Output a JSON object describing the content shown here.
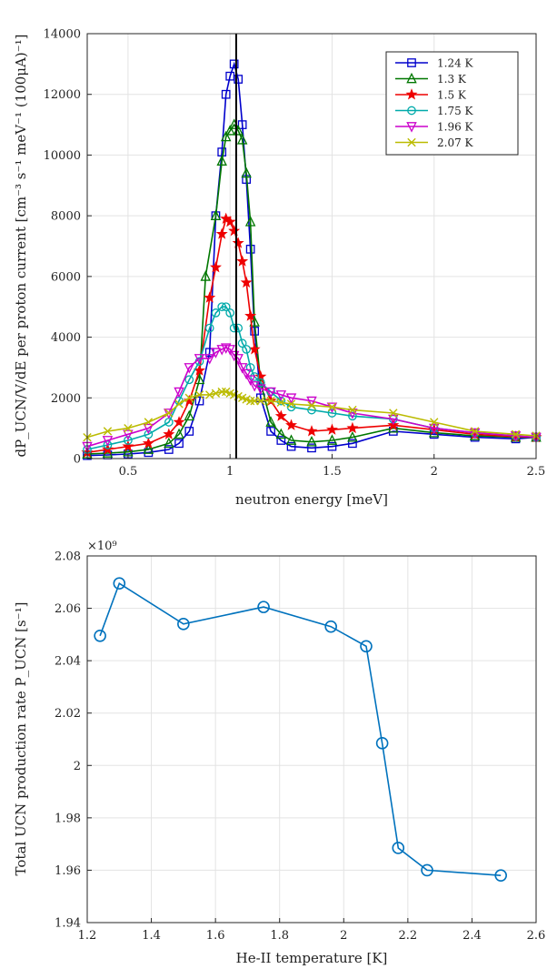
{
  "chart_data": [
    {
      "type": "line",
      "xlabel": "neutron energy [meV]",
      "ylabel": "dP_UCN/V/dE per proton current [cm⁻³ s⁻¹ meV⁻¹ (100μA)⁻¹]",
      "xlim": [
        0.3,
        2.5
      ],
      "ylim": [
        0,
        14000
      ],
      "xticks": [
        0.5,
        1,
        1.5,
        2,
        2.5
      ],
      "xtick_labels": [
        "0.5",
        "1",
        "1.5",
        "2",
        "2.5"
      ],
      "yticks": [
        0,
        2000,
        4000,
        6000,
        8000,
        10000,
        12000,
        14000
      ],
      "ytick_labels": [
        "0",
        "2000",
        "4000",
        "6000",
        "8000",
        "10000",
        "12000",
        "14000"
      ],
      "grid": true,
      "legend_position": "top-right",
      "vertical_line_x": 1.03,
      "series": [
        {
          "name": "1.24 K",
          "color": "#0000cc",
          "marker": "square",
          "x": [
            0.3,
            0.4,
            0.5,
            0.6,
            0.7,
            0.75,
            0.8,
            0.85,
            0.9,
            0.93,
            0.96,
            0.98,
            1.0,
            1.02,
            1.04,
            1.06,
            1.08,
            1.1,
            1.12,
            1.15,
            1.2,
            1.25,
            1.3,
            1.4,
            1.5,
            1.6,
            1.8,
            2.0,
            2.2,
            2.4,
            2.5
          ],
          "y": [
            100,
            120,
            150,
            200,
            300,
            500,
            900,
            1900,
            3500,
            8000,
            10100,
            12000,
            12600,
            13000,
            12500,
            11000,
            9200,
            6900,
            4200,
            2000,
            900,
            600,
            400,
            350,
            400,
            500,
            900,
            800,
            700,
            650,
            700
          ]
        },
        {
          "name": "1.3 K",
          "color": "#007700",
          "marker": "triangle",
          "x": [
            0.3,
            0.4,
            0.5,
            0.6,
            0.7,
            0.75,
            0.8,
            0.85,
            0.88,
            0.93,
            0.96,
            0.98,
            1.0,
            1.02,
            1.04,
            1.06,
            1.08,
            1.1,
            1.12,
            1.15,
            1.2,
            1.25,
            1.3,
            1.4,
            1.5,
            1.6,
            1.8,
            2.0,
            2.2,
            2.4,
            2.5
          ],
          "y": [
            150,
            180,
            220,
            300,
            500,
            800,
            1400,
            2600,
            6000,
            8000,
            9800,
            10600,
            10800,
            11000,
            10800,
            10500,
            9400,
            7800,
            4500,
            2500,
            1200,
            800,
            600,
            550,
            600,
            700,
            1000,
            850,
            750,
            700,
            700
          ]
        },
        {
          "name": "1.5 K",
          "color": "#ee0000",
          "marker": "star",
          "x": [
            0.3,
            0.4,
            0.5,
            0.6,
            0.7,
            0.75,
            0.8,
            0.85,
            0.9,
            0.93,
            0.96,
            0.98,
            1.0,
            1.02,
            1.04,
            1.06,
            1.08,
            1.1,
            1.12,
            1.15,
            1.2,
            1.25,
            1.3,
            1.4,
            1.5,
            1.6,
            1.8,
            2.0,
            2.2,
            2.4,
            2.5
          ],
          "y": [
            200,
            300,
            400,
            500,
            800,
            1200,
            1900,
            2900,
            5300,
            6300,
            7400,
            7900,
            7800,
            7500,
            7100,
            6500,
            5800,
            4700,
            3600,
            2700,
            1900,
            1400,
            1100,
            900,
            950,
            1000,
            1100,
            950,
            800,
            720,
            700
          ]
        },
        {
          "name": "1.75 K",
          "color": "#00aaaa",
          "marker": "circle",
          "x": [
            0.3,
            0.4,
            0.5,
            0.6,
            0.7,
            0.75,
            0.8,
            0.85,
            0.9,
            0.93,
            0.96,
            0.98,
            1.0,
            1.02,
            1.04,
            1.06,
            1.08,
            1.1,
            1.12,
            1.15,
            1.2,
            1.25,
            1.3,
            1.4,
            1.5,
            1.6,
            1.8,
            2.0,
            2.2,
            2.4,
            2.5
          ],
          "y": [
            300,
            450,
            600,
            800,
            1200,
            1900,
            2600,
            3200,
            4300,
            4800,
            5000,
            5000,
            4800,
            4300,
            4300,
            3800,
            3600,
            3000,
            2700,
            2500,
            2200,
            1900,
            1700,
            1600,
            1500,
            1400,
            1300,
            1000,
            850,
            750,
            700
          ]
        },
        {
          "name": "1.96 K",
          "color": "#cc00cc",
          "marker": "triangle-down",
          "x": [
            0.3,
            0.4,
            0.5,
            0.6,
            0.7,
            0.75,
            0.8,
            0.85,
            0.9,
            0.93,
            0.96,
            0.98,
            1.0,
            1.02,
            1.04,
            1.06,
            1.08,
            1.1,
            1.12,
            1.15,
            1.2,
            1.25,
            1.3,
            1.4,
            1.5,
            1.6,
            1.8,
            2.0,
            2.2,
            2.4,
            2.5
          ],
          "y": [
            400,
            600,
            800,
            1000,
            1500,
            2200,
            3000,
            3300,
            3300,
            3500,
            3600,
            3650,
            3600,
            3400,
            3300,
            3000,
            2800,
            2600,
            2400,
            2300,
            2200,
            2100,
            2000,
            1900,
            1700,
            1500,
            1300,
            1000,
            850,
            750,
            700
          ]
        },
        {
          "name": "2.07 K",
          "color": "#bbbb00",
          "marker": "x",
          "x": [
            0.3,
            0.4,
            0.5,
            0.6,
            0.7,
            0.75,
            0.8,
            0.85,
            0.9,
            0.93,
            0.96,
            0.98,
            1.0,
            1.02,
            1.04,
            1.06,
            1.08,
            1.1,
            1.12,
            1.15,
            1.2,
            1.25,
            1.3,
            1.4,
            1.5,
            1.6,
            1.8,
            2.0,
            2.2,
            2.4,
            2.5
          ],
          "y": [
            700,
            900,
            1000,
            1200,
            1500,
            1800,
            2000,
            2100,
            2100,
            2150,
            2200,
            2200,
            2150,
            2100,
            2050,
            2000,
            1950,
            1900,
            1900,
            1900,
            1900,
            1850,
            1800,
            1750,
            1700,
            1600,
            1500,
            1200,
            900,
            800,
            750
          ]
        }
      ]
    },
    {
      "type": "line",
      "xlabel": "He-II temperature [K]",
      "ylabel": "Total UCN production rate P_UCN [s⁻¹]",
      "multiplier_label": "×10⁹",
      "xlim": [
        1.2,
        2.6
      ],
      "ylim": [
        1.94,
        2.08
      ],
      "xticks": [
        1.2,
        1.4,
        1.6,
        1.8,
        2.0,
        2.2,
        2.4,
        2.6
      ],
      "xtick_labels": [
        "1.2",
        "1.4",
        "1.6",
        "1.8",
        "2",
        "2.2",
        "2.4",
        "2.6"
      ],
      "yticks": [
        1.94,
        1.96,
        1.98,
        2.0,
        2.02,
        2.04,
        2.06,
        2.08
      ],
      "ytick_labels": [
        "1.94",
        "1.96",
        "1.98",
        "2",
        "2.02",
        "2.04",
        "2.06",
        "2.08"
      ],
      "grid": true,
      "color": "#0072bd",
      "marker": "circle",
      "x": [
        1.24,
        1.3,
        1.5,
        1.75,
        1.96,
        2.07,
        2.12,
        2.17,
        2.26,
        2.49
      ],
      "y": [
        2.0495,
        2.0695,
        2.054,
        2.0605,
        2.053,
        2.0455,
        2.0085,
        1.9685,
        1.96,
        1.958
      ]
    }
  ]
}
